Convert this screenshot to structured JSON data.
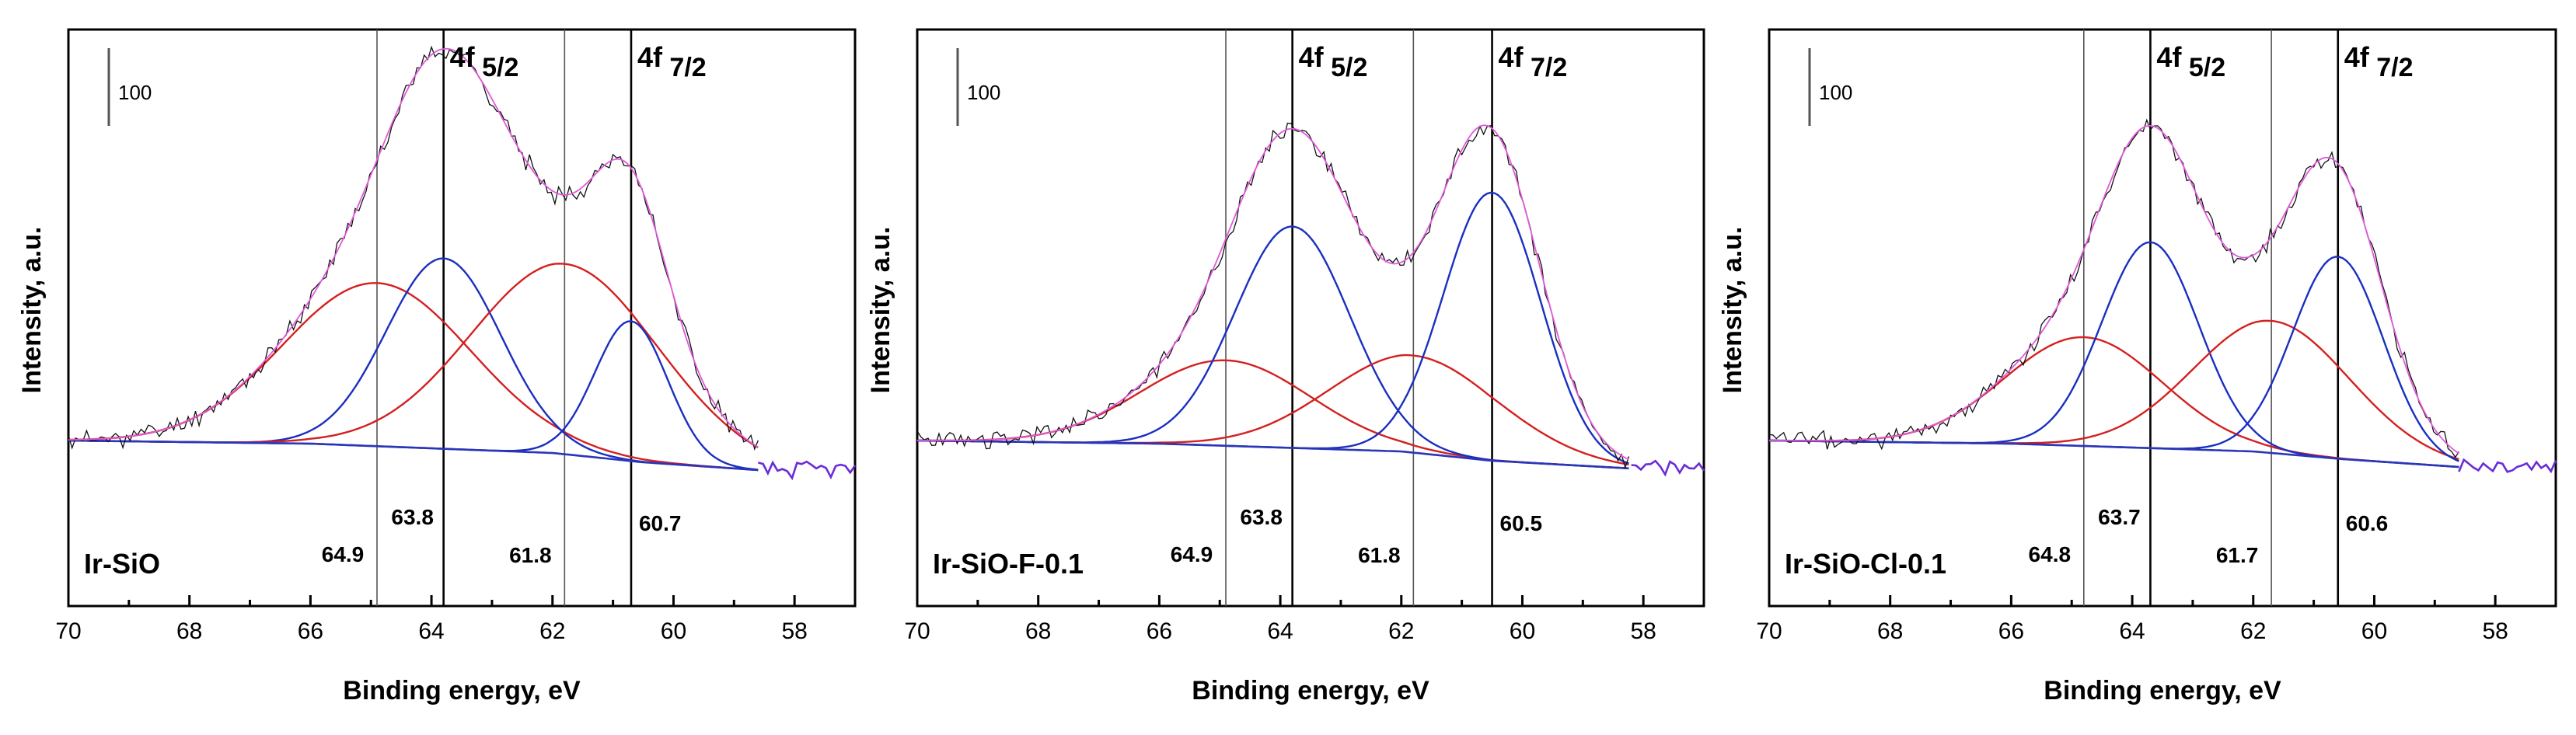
{
  "chart_data": [
    {
      "type": "line",
      "sample_label": "Ir-SiO",
      "xlabel": "Binding energy, eV",
      "ylabel": "Intensity, a.u.",
      "xlim": [
        70,
        57
      ],
      "x_ticks": [
        70,
        68,
        66,
        64,
        62,
        60,
        58
      ],
      "intensity_scale_bar": "100",
      "orbital_labels": [
        "4f",
        "5/2",
        "4f",
        "7/2"
      ],
      "peak_positions": [
        64.9,
        63.8,
        61.8,
        60.7
      ],
      "peak_labels": [
        "64.9",
        "63.8",
        "61.8",
        "60.7"
      ],
      "peak_colors": [
        "#d42020",
        "#1a2fc0",
        "#d42020",
        "#1a2fc0"
      ],
      "peak_heights": [
        210,
        245,
        245,
        180
      ],
      "peak_widths": [
        1.55,
        0.95,
        1.55,
        0.6
      ],
      "background": [
        [
          70,
          0
        ],
        [
          66,
          -4
        ],
        [
          62,
          -16
        ],
        [
          60.5,
          -28
        ],
        [
          58.6,
          -38
        ]
      ],
      "data_noise_seed": 11
    },
    {
      "type": "line",
      "sample_label": "Ir-SiO-F-0.1",
      "xlabel": "Binding energy, eV",
      "ylabel": "Intensity, a.u.",
      "xlim": [
        70,
        57
      ],
      "x_ticks": [
        70,
        68,
        66,
        64,
        62,
        60,
        58
      ],
      "intensity_scale_bar": "100",
      "orbital_labels": [
        "4f",
        "5/2",
        "4f",
        "7/2"
      ],
      "peak_positions": [
        64.9,
        63.8,
        61.8,
        60.5
      ],
      "peak_labels": [
        "64.9",
        "63.8",
        "61.8",
        "60.5"
      ],
      "peak_colors": [
        "#d42020",
        "#1a2fc0",
        "#d42020",
        "#1a2fc0"
      ],
      "peak_heights": [
        110,
        285,
        125,
        345
      ],
      "peak_widths": [
        1.4,
        0.95,
        1.4,
        0.8
      ],
      "background": [
        [
          70,
          0
        ],
        [
          66,
          -4
        ],
        [
          62,
          -14
        ],
        [
          60.5,
          -26
        ],
        [
          58.2,
          -36
        ]
      ],
      "data_noise_seed": 23
    },
    {
      "type": "line",
      "sample_label": "Ir-SiO-Cl-0.1",
      "xlabel": "Binding energy, eV",
      "ylabel": "Intensity, a.u.",
      "xlim": [
        70,
        57
      ],
      "x_ticks": [
        70,
        68,
        66,
        64,
        62,
        60,
        58
      ],
      "intensity_scale_bar": "100",
      "orbital_labels": [
        "4f",
        "5/2",
        "4f",
        "7/2"
      ],
      "peak_positions": [
        64.8,
        63.7,
        61.7,
        60.6
      ],
      "peak_labels": [
        "64.8",
        "63.7",
        "61.7",
        "60.6"
      ],
      "peak_colors": [
        "#d42020",
        "#1a2fc0",
        "#d42020",
        "#1a2fc0"
      ],
      "peak_heights": [
        140,
        265,
        170,
        260
      ],
      "peak_widths": [
        1.3,
        0.8,
        1.3,
        0.75
      ],
      "background": [
        [
          70,
          0
        ],
        [
          66,
          -4
        ],
        [
          62,
          -14
        ],
        [
          60.5,
          -24
        ],
        [
          58.6,
          -34
        ]
      ],
      "data_noise_seed": 37
    }
  ],
  "colors": {
    "experimental": "#111111",
    "envelope": "#e05ad8",
    "doublet_component": "#1a2fc0",
    "satellite_component": "#d42020",
    "background": "#2a36b8",
    "tail": "#6a2bd8"
  }
}
